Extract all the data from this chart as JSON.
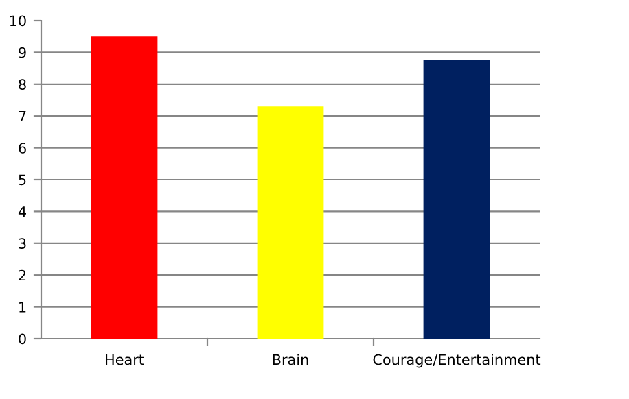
{
  "chart_data": {
    "type": "bar",
    "categories": [
      "Heart",
      "Brain",
      "Courage/Entertainment"
    ],
    "values": [
      9.5,
      7.3,
      8.75
    ],
    "colors": [
      "#ff0000",
      "#ffff00",
      "#002060"
    ],
    "ylim": [
      0,
      10
    ],
    "yticks": [
      0,
      1,
      2,
      3,
      4,
      5,
      6,
      7,
      8,
      9,
      10
    ],
    "grid": "y",
    "legend": false
  }
}
